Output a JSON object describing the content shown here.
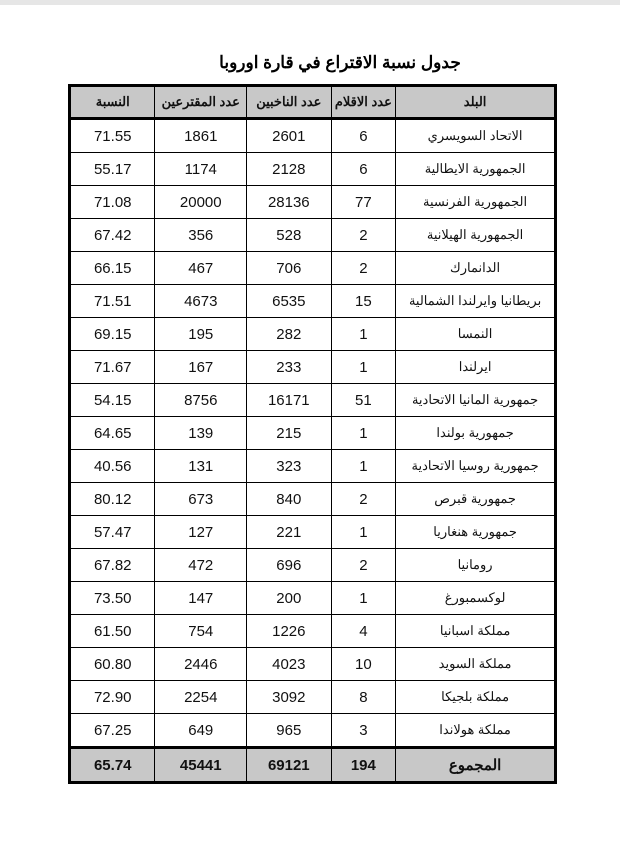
{
  "title": "جدول نسبة الاقتراع في قارة اوروبا",
  "headers": [
    "البلد",
    "عدد الاقلام",
    "عدد الناخبين",
    "عدد المقترعين",
    "النسبة"
  ],
  "rows": [
    [
      "الاتحاد السويسري",
      "6",
      "2601",
      "1861",
      "71.55"
    ],
    [
      "الجمهورية الايطالية",
      "6",
      "2128",
      "1174",
      "55.17"
    ],
    [
      "الجمهورية الفرنسية",
      "77",
      "28136",
      "20000",
      "71.08"
    ],
    [
      "الجمهورية الهيلانية",
      "2",
      "528",
      "356",
      "67.42"
    ],
    [
      "الدانمارك",
      "2",
      "706",
      "467",
      "66.15"
    ],
    [
      "بريطانيا وايرلندا الشمالية",
      "15",
      "6535",
      "4673",
      "71.51"
    ],
    [
      "النمسا",
      "1",
      "282",
      "195",
      "69.15"
    ],
    [
      "ايرلندا",
      "1",
      "233",
      "167",
      "71.67"
    ],
    [
      "جمهورية المانيا الاتحادية",
      "51",
      "16171",
      "8756",
      "54.15"
    ],
    [
      "جمهورية بولندا",
      "1",
      "215",
      "139",
      "64.65"
    ],
    [
      "جمهورية روسيا الاتحادية",
      "1",
      "323",
      "131",
      "40.56"
    ],
    [
      "جمهورية قبرص",
      "2",
      "840",
      "673",
      "80.12"
    ],
    [
      "جمهورية هنغاريا",
      "1",
      "221",
      "127",
      "57.47"
    ],
    [
      "رومانيا",
      "2",
      "696",
      "472",
      "67.82"
    ],
    [
      "لوكسمبورغ",
      "1",
      "200",
      "147",
      "73.50"
    ],
    [
      "مملكة اسبانيا",
      "4",
      "1226",
      "754",
      "61.50"
    ],
    [
      "مملكة السويد",
      "10",
      "4023",
      "2446",
      "60.80"
    ],
    [
      "مملكة بلجيكا",
      "8",
      "3092",
      "2254",
      "72.90"
    ],
    [
      "مملكة هولاندا",
      "3",
      "965",
      "649",
      "67.25"
    ]
  ],
  "total": [
    "المجموع",
    "194",
    "69121",
    "45441",
    "65.74"
  ],
  "colors": {
    "header_bg": "#c8c8c8",
    "border": "#000000"
  }
}
